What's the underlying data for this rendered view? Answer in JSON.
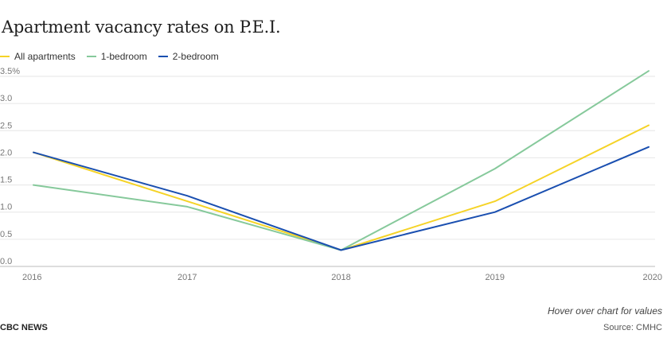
{
  "chart_data": {
    "type": "line",
    "title": "Apartment vacancy rates on P.E.I.",
    "x": [
      "2016",
      "2017",
      "2018",
      "2019",
      "2020"
    ],
    "series": [
      {
        "name": "All apartments",
        "color": "#f5d327",
        "values": [
          2.1,
          1.2,
          0.3,
          1.2,
          2.6
        ]
      },
      {
        "name": "1-bedroom",
        "color": "#86c99b",
        "values": [
          1.5,
          1.1,
          0.3,
          1.8,
          3.6
        ]
      },
      {
        "name": "2-bedroom",
        "color": "#1a4fb0",
        "values": [
          2.1,
          1.3,
          0.3,
          1.0,
          2.2
        ]
      }
    ],
    "yticks": [
      "0.0",
      "0.5",
      "1.0",
      "1.5",
      "2.0",
      "2.5",
      "3.0",
      "3.5%"
    ],
    "ylim": [
      0,
      3.5
    ],
    "grid": true,
    "legend_position": "top-left"
  },
  "footer": {
    "hint": "Hover over chart for values",
    "brand": "CBC NEWS",
    "source": "Source: CMHC"
  }
}
